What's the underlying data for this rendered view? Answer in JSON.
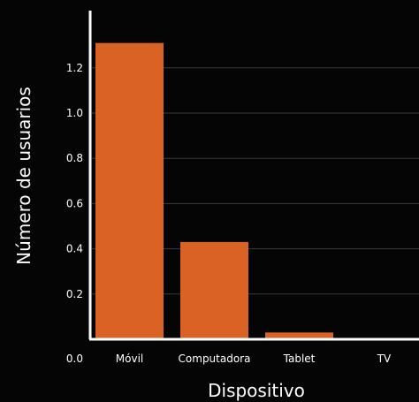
{
  "chart_data": {
    "type": "bar",
    "categories": [
      "Móvil",
      "Computadora",
      "Tablet",
      "TV"
    ],
    "values": [
      1.31,
      0.43,
      0.03,
      0.0
    ],
    "xlabel": "Dispositivo",
    "ylabel": "Número de usuarios",
    "ylim": [
      0,
      1.36
    ],
    "yticks": [
      0.0,
      0.2,
      0.4,
      0.6,
      0.8,
      1.0,
      1.2
    ],
    "ytick_labels": [
      "0.0",
      "0.2",
      "0.4",
      "0.6",
      "0.8",
      "1.0",
      "1.2"
    ],
    "grid": true,
    "legend": false
  },
  "colors": {
    "background": "#050505",
    "bar": "#d96224",
    "gridline": "#3a3a3a",
    "axis": "#ffffff",
    "text": "#ffffff"
  }
}
